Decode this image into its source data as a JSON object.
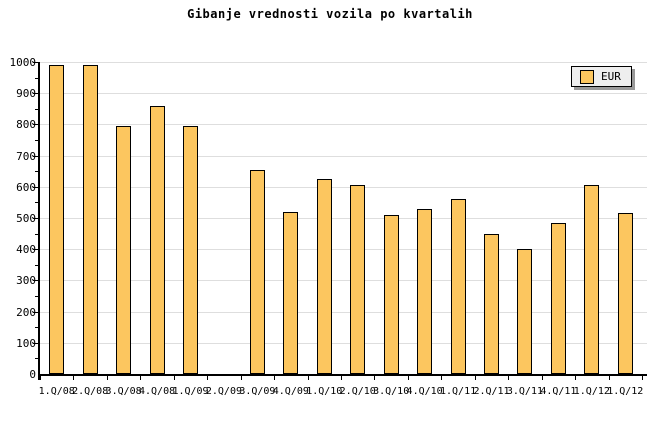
{
  "chart_data": {
    "type": "bar",
    "title": "Gibanje vrednosti vozila po kvartalih",
    "categories": [
      "1.Q/08",
      "2.Q/08",
      "3.Q/08",
      "4.Q/08",
      "1.Q/09",
      "2.Q/09",
      "3.Q/09",
      "4.Q/09",
      "1.Q/10",
      "2.Q/10",
      "3.Q/10",
      "4.Q/10",
      "1.Q/11",
      "2.Q/11",
      "3.Q/11",
      "4.Q/11",
      "1.Q/12",
      "1.Q/12"
    ],
    "series": [
      {
        "name": "EUR",
        "values": [
          990,
          990,
          795,
          860,
          795,
          null,
          655,
          520,
          625,
          605,
          510,
          530,
          560,
          450,
          400,
          485,
          605,
          515
        ]
      }
    ],
    "missing_categories": [
      "2.Q/09"
    ],
    "ylim": [
      0,
      1000
    ],
    "ytick_major_step": 100,
    "ytick_minor_step": 50,
    "yticks": [
      "0",
      "100",
      "200",
      "300",
      "400",
      "500",
      "600",
      "700",
      "800",
      "900",
      "1000"
    ],
    "xlabel": "",
    "ylabel": "",
    "grid": "horizontal",
    "legend": {
      "label": "EUR",
      "position": "top-right",
      "swatch": "orange-square-icon"
    },
    "colors": {
      "bar_fill": "#FCC65F",
      "bar_border": "#000000",
      "gridline": "#DEDEDE",
      "axis": "#000000",
      "text": "#000000",
      "legend_bg": "#EEEEEE",
      "legend_shadow": "#999999",
      "background": "#FFFFFF"
    }
  }
}
